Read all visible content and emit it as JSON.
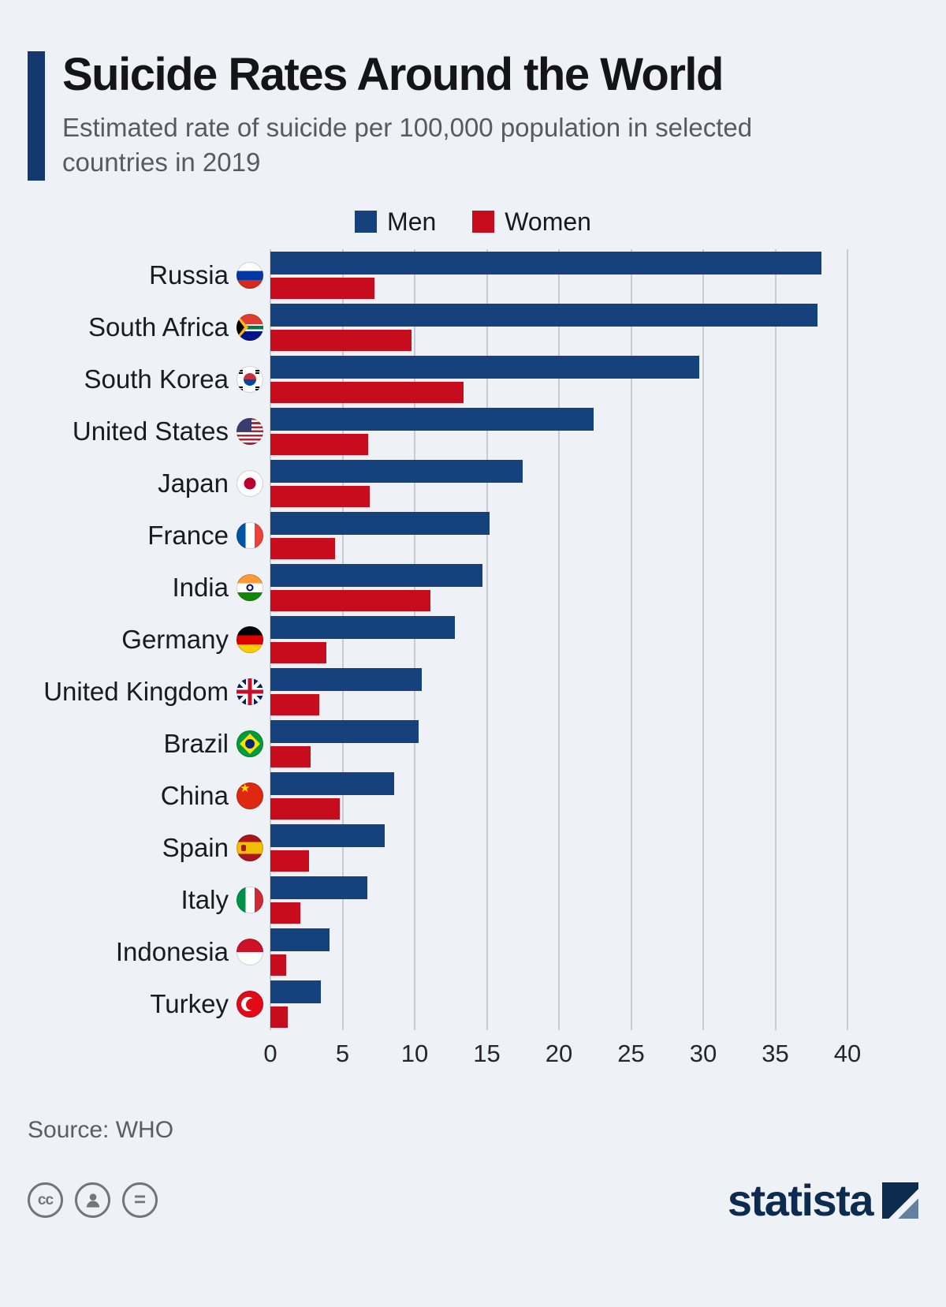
{
  "header": {
    "title": "Suicide Rates Around the World",
    "subtitle": "Estimated rate of suicide per 100,000 population in selected countries in 2019"
  },
  "legend": [
    {
      "label": "Men",
      "color": "#15417c"
    },
    {
      "label": "Women",
      "color": "#c60c1d"
    }
  ],
  "chart_data": {
    "type": "bar",
    "orientation": "horizontal",
    "title": "Suicide Rates Around the World",
    "subtitle": "Estimated rate of suicide per 100,000 population in selected countries in 2019",
    "xlabel": "",
    "ylabel": "",
    "xlim": [
      0,
      40
    ],
    "xticks": [
      0,
      5,
      10,
      15,
      20,
      25,
      30,
      35,
      40
    ],
    "grid": true,
    "legend_position": "top",
    "categories": [
      "Russia",
      "South Africa",
      "South Korea",
      "United States",
      "Japan",
      "France",
      "India",
      "Germany",
      "United Kingdom",
      "Brazil",
      "China",
      "Spain",
      "Italy",
      "Indonesia",
      "Turkey"
    ],
    "flags": [
      "ru",
      "za",
      "kr",
      "us",
      "jp",
      "fr",
      "in",
      "de",
      "gb",
      "br",
      "cn",
      "es",
      "it",
      "id",
      "tr"
    ],
    "series": [
      {
        "name": "Men",
        "color": "#15417c",
        "values": [
          38.2,
          37.9,
          29.7,
          22.4,
          17.5,
          15.2,
          14.7,
          12.8,
          10.5,
          10.3,
          8.6,
          7.9,
          6.7,
          4.1,
          3.5
        ]
      },
      {
        "name": "Women",
        "color": "#c60c1d",
        "values": [
          7.2,
          9.8,
          13.4,
          6.8,
          6.9,
          4.5,
          11.1,
          3.9,
          3.4,
          2.8,
          4.8,
          2.7,
          2.1,
          1.1,
          1.2
        ]
      }
    ]
  },
  "footer": {
    "source": "Source: WHO",
    "brand": "statista",
    "cc_label": "cc",
    "nd_label": "="
  }
}
